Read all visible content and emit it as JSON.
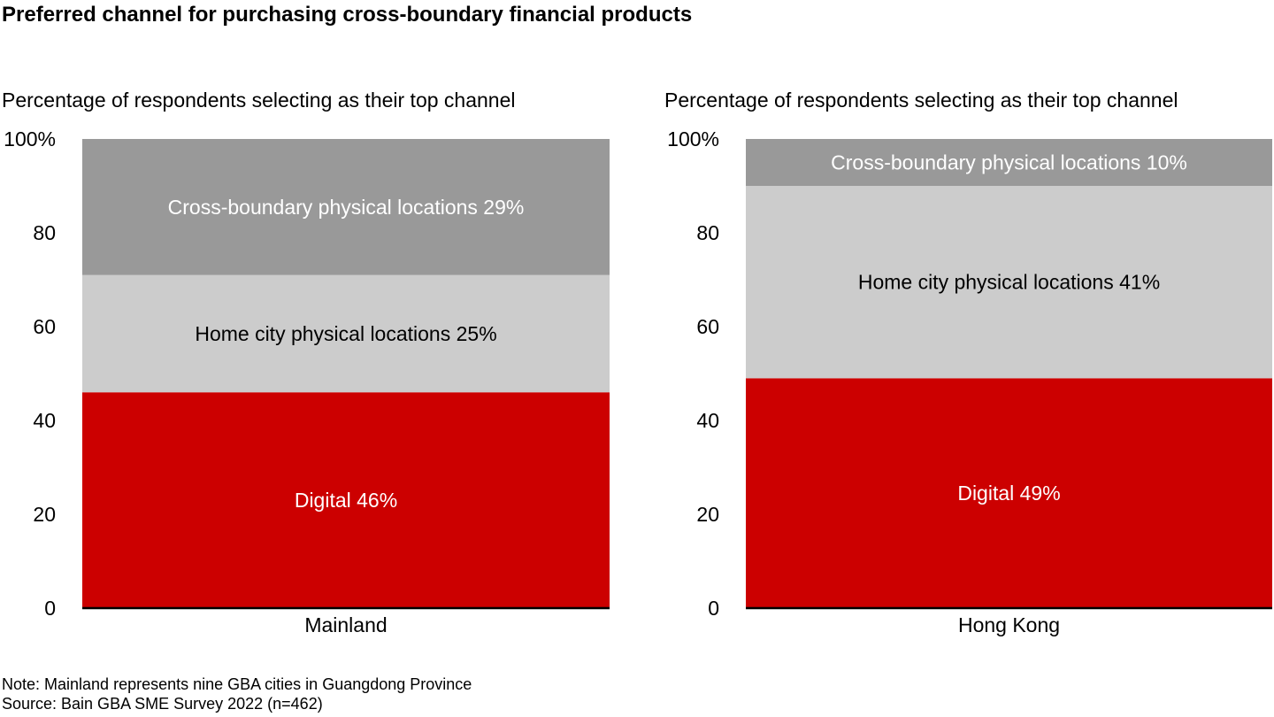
{
  "title": "Preferred channel for purchasing cross-boundary financial products",
  "footnotes": {
    "note": "Note: Mainland represents nine GBA cities in Guangdong Province",
    "source": "Source: Bain GBA SME Survey 2022 (n=462)"
  },
  "chart_data": [
    {
      "type": "bar",
      "stacked": true,
      "subtitle": "Percentage of respondents selecting as their top channel",
      "categories": [
        "Mainland"
      ],
      "yticks": [
        "0",
        "20",
        "40",
        "60",
        "80",
        "100%"
      ],
      "ylim": [
        0,
        100
      ],
      "series": [
        {
          "name": "Digital",
          "values": [
            46
          ],
          "label": "Digital 46%",
          "color": "#CC0000",
          "label_color": "#ffffff"
        },
        {
          "name": "Home city physical locations",
          "values": [
            25
          ],
          "label": "Home city physical locations 25%",
          "color": "#CCCCCC",
          "label_color": "#000000"
        },
        {
          "name": "Cross-boundary physical locations",
          "values": [
            29
          ],
          "label": "Cross-boundary physical locations 29%",
          "color": "#999999",
          "label_color": "#ffffff"
        }
      ]
    },
    {
      "type": "bar",
      "stacked": true,
      "subtitle": "Percentage of respondents selecting as their top channel",
      "categories": [
        "Hong Kong"
      ],
      "yticks": [
        "0",
        "20",
        "40",
        "60",
        "80",
        "100%"
      ],
      "ylim": [
        0,
        100
      ],
      "series": [
        {
          "name": "Digital",
          "values": [
            49
          ],
          "label": "Digital 49%",
          "color": "#CC0000",
          "label_color": "#ffffff"
        },
        {
          "name": "Home city physical locations",
          "values": [
            41
          ],
          "label": "Home city physical locations 41%",
          "color": "#CCCCCC",
          "label_color": "#000000"
        },
        {
          "name": "Cross-boundary physical locations",
          "values": [
            10
          ],
          "label": "Cross-boundary physical locations 10%",
          "color": "#999999",
          "label_color": "#ffffff"
        }
      ]
    }
  ]
}
